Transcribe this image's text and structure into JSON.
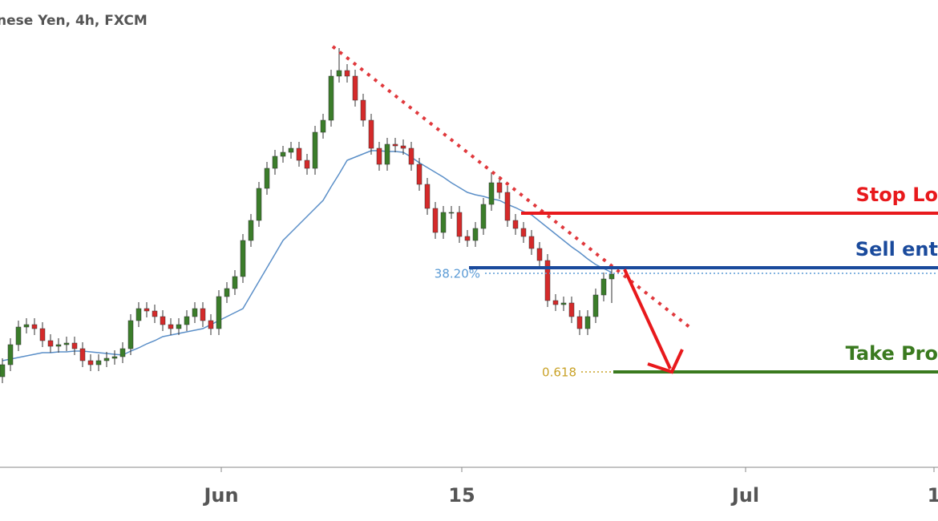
{
  "chart_data": {
    "type": "candlestick",
    "title": "nese Yen, 4h, FXCM",
    "x": [
      0,
      1,
      2,
      3,
      4,
      5,
      6,
      7,
      8,
      9,
      10,
      11,
      12,
      13,
      14,
      15,
      16,
      17,
      18,
      19,
      20,
      21,
      22,
      23,
      24,
      25,
      26,
      27,
      28,
      29,
      30,
      31,
      32,
      33,
      34,
      35,
      36,
      37,
      38,
      39,
      40,
      41,
      42,
      43,
      44,
      45,
      46,
      47,
      48,
      49,
      50,
      51,
      52,
      53,
      54,
      55,
      56,
      57,
      58,
      59,
      60,
      61,
      62,
      63,
      64,
      65,
      66,
      67,
      68,
      69,
      70,
      71,
      72,
      73,
      74,
      75,
      76
    ],
    "open": [
      113,
      128,
      153,
      175,
      178,
      173,
      158,
      151,
      153,
      155,
      148,
      133,
      128,
      133,
      136,
      138,
      148,
      183,
      198,
      195,
      188,
      178,
      173,
      178,
      188,
      198,
      183,
      173,
      213,
      223,
      238,
      283,
      308,
      348,
      373,
      388,
      393,
      398,
      383,
      373,
      418,
      433,
      488,
      495,
      488,
      458,
      433,
      398,
      378,
      403,
      401,
      398,
      378,
      353,
      323,
      293,
      318,
      318,
      288,
      283,
      298,
      328,
      355,
      343,
      308,
      298,
      288,
      273,
      258,
      208,
      203,
      205,
      188,
      173,
      188,
      215,
      235
    ],
    "high": [
      136,
      161,
      183,
      186,
      186,
      181,
      166,
      161,
      163,
      163,
      156,
      141,
      141,
      144,
      146,
      156,
      191,
      206,
      206,
      203,
      196,
      186,
      186,
      196,
      206,
      206,
      191,
      221,
      231,
      246,
      291,
      316,
      356,
      381,
      396,
      401,
      406,
      406,
      391,
      426,
      441,
      496,
      523,
      503,
      496,
      466,
      441,
      406,
      411,
      411,
      409,
      406,
      386,
      361,
      331,
      326,
      326,
      326,
      296,
      306,
      336,
      368,
      363,
      351,
      316,
      306,
      296,
      281,
      266,
      216,
      213,
      213,
      196,
      196,
      223,
      243,
      249
    ],
    "low": [
      105,
      120,
      145,
      167,
      165,
      150,
      143,
      143,
      145,
      140,
      125,
      120,
      120,
      125,
      128,
      130,
      140,
      175,
      187,
      180,
      170,
      165,
      165,
      170,
      180,
      175,
      165,
      165,
      205,
      215,
      230,
      275,
      300,
      340,
      365,
      380,
      385,
      375,
      365,
      365,
      410,
      425,
      480,
      480,
      450,
      425,
      390,
      370,
      370,
      393,
      390,
      370,
      345,
      315,
      285,
      285,
      310,
      280,
      275,
      275,
      290,
      320,
      335,
      300,
      290,
      280,
      265,
      250,
      200,
      195,
      195,
      180,
      165,
      165,
      180,
      207,
      205
    ],
    "close": [
      128,
      153,
      175,
      178,
      173,
      158,
      151,
      153,
      155,
      148,
      133,
      128,
      133,
      136,
      138,
      148,
      183,
      198,
      195,
      188,
      178,
      173,
      178,
      188,
      198,
      183,
      173,
      213,
      223,
      238,
      283,
      308,
      348,
      373,
      388,
      393,
      398,
      383,
      373,
      418,
      433,
      488,
      495,
      488,
      458,
      433,
      398,
      378,
      403,
      401,
      398,
      378,
      353,
      323,
      293,
      318,
      318,
      288,
      283,
      298,
      328,
      355,
      343,
      308,
      298,
      288,
      273,
      258,
      208,
      203,
      205,
      188,
      173,
      188,
      215,
      235,
      241
    ],
    "up_color": "#3b7d2a",
    "down_color": "#d42a2a",
    "moving_average": {
      "color": "#5b8fc8",
      "values": [
        133,
        135,
        137,
        139,
        141,
        143,
        143,
        144,
        144,
        145,
        145,
        144,
        143,
        142,
        141,
        140,
        145,
        149,
        154,
        158,
        163,
        165,
        167,
        169,
        171,
        173,
        178,
        183,
        188,
        193,
        198,
        215,
        232,
        249,
        266,
        283,
        293,
        303,
        313,
        323,
        333,
        350,
        366,
        383,
        387,
        391,
        395,
        395,
        394,
        394,
        393,
        387,
        380,
        374,
        368,
        362,
        355,
        349,
        343,
        340,
        338,
        335,
        333,
        328,
        324,
        319,
        315,
        307,
        299,
        291,
        283,
        275,
        268,
        260,
        253,
        248,
        243
      ]
    },
    "xlim": [
      -0.3,
      116.7
    ],
    "ylim": [
      0,
      583
    ],
    "xticks": [
      {
        "value": 27.3,
        "label": "Jun"
      },
      {
        "value": 57.3,
        "label": "15"
      },
      {
        "value": 92.7,
        "label": "Jul"
      },
      {
        "value": 116.2,
        "label": "1"
      }
    ],
    "levels": [
      {
        "label": "Stop Lo",
        "value": 317,
        "x_from": 64.7,
        "color": "#e8191c"
      },
      {
        "label": "Sell ent",
        "value": 249,
        "x_from": 58.2,
        "color": "#1a4a9c"
      },
      {
        "label": "Take Pro",
        "value": 119,
        "x_from": 76.2,
        "color": "#3a7a1f"
      }
    ],
    "fib_levels": [
      {
        "label": "38.20%",
        "value": 242,
        "x_from": 60.2,
        "color": "#5b9bd5"
      },
      {
        "label": "0.618",
        "value": 119,
        "x_from": 72.2,
        "x_to": 76.2,
        "color": "#c9a227"
      }
    ],
    "trendline": {
      "x": [
        41.2,
        85.7
      ],
      "values": [
        525,
        175
      ],
      "color": "#e0383c"
    }
  }
}
